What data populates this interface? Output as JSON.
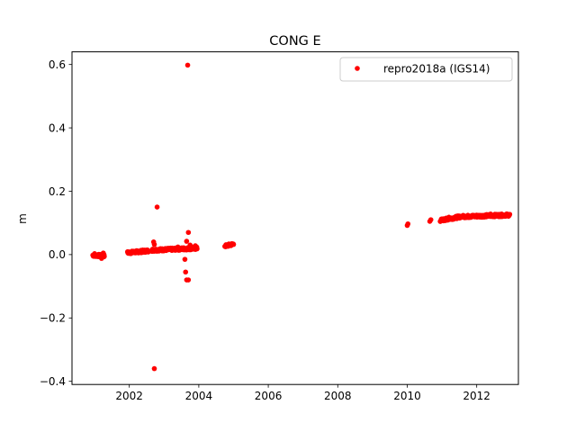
{
  "chart_data": {
    "type": "scatter",
    "title": "CONG E",
    "xlabel": "",
    "ylabel": "m",
    "xlim": [
      2000.35,
      2013.2
    ],
    "ylim": [
      -0.41,
      0.64
    ],
    "xticks": [
      2002,
      2004,
      2006,
      2008,
      2010,
      2012
    ],
    "yticks": [
      -0.4,
      -0.2,
      0.0,
      0.2,
      0.4,
      0.6
    ],
    "xtick_labels": [
      "2002",
      "2004",
      "2006",
      "2008",
      "2010",
      "2012"
    ],
    "ytick_labels": [
      "−0.4",
      "−0.2",
      "0.0",
      "0.2",
      "0.4",
      "0.6"
    ],
    "grid": false,
    "legend_position": "upper right",
    "series": [
      {
        "name": "repro2018a (IGS14)",
        "color": "#ff0000",
        "marker": "circle",
        "segments": [
          {
            "x_start": 2000.95,
            "x_end": 2001.28,
            "y_start": -0.002,
            "y_end": -0.004,
            "count": 45
          },
          {
            "x_start": 2001.95,
            "x_end": 2002.55,
            "y_start": 0.006,
            "y_end": 0.012,
            "count": 70
          },
          {
            "x_start": 2002.65,
            "x_end": 2003.95,
            "y_start": 0.014,
            "y_end": 0.02,
            "count": 150
          },
          {
            "x_start": 2004.75,
            "x_end": 2005.0,
            "y_start": 0.027,
            "y_end": 0.033,
            "count": 25
          },
          {
            "x_start": 2010.95,
            "x_end": 2011.55,
            "y_start": 0.108,
            "y_end": 0.12,
            "count": 60
          },
          {
            "x_start": 2011.6,
            "x_end": 2012.95,
            "y_start": 0.12,
            "y_end": 0.125,
            "count": 140
          }
        ],
        "points": [
          {
            "x": 2001.0,
            "y": 0.003
          },
          {
            "x": 2001.2,
            "y": -0.012
          },
          {
            "x": 2001.25,
            "y": 0.005
          },
          {
            "x": 2002.7,
            "y": 0.04
          },
          {
            "x": 2002.72,
            "y": 0.032
          },
          {
            "x": 2002.8,
            "y": 0.15
          },
          {
            "x": 2002.72,
            "y": -0.36
          },
          {
            "x": 2003.6,
            "y": -0.015
          },
          {
            "x": 2003.62,
            "y": -0.055
          },
          {
            "x": 2003.65,
            "y": -0.08
          },
          {
            "x": 2003.7,
            "y": -0.08
          },
          {
            "x": 2003.68,
            "y": 0.598
          },
          {
            "x": 2003.7,
            "y": 0.07
          },
          {
            "x": 2003.65,
            "y": 0.042
          },
          {
            "x": 2003.75,
            "y": 0.03
          },
          {
            "x": 2003.4,
            "y": 0.024
          },
          {
            "x": 2003.9,
            "y": 0.028
          },
          {
            "x": 2010.0,
            "y": 0.092
          },
          {
            "x": 2010.02,
            "y": 0.097
          },
          {
            "x": 2010.65,
            "y": 0.105
          },
          {
            "x": 2010.68,
            "y": 0.11
          },
          {
            "x": 2011.2,
            "y": 0.118
          },
          {
            "x": 2012.4,
            "y": 0.128
          }
        ]
      }
    ]
  }
}
